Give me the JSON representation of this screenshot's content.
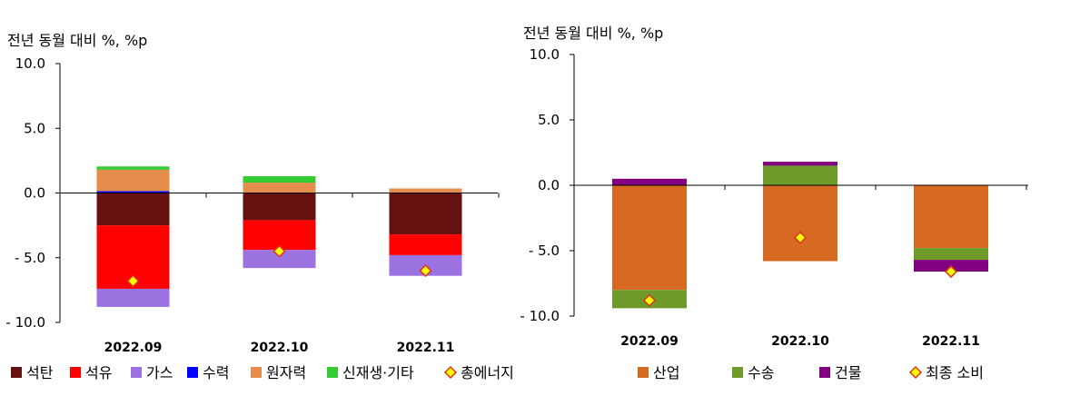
{
  "chart_data": [
    {
      "type": "bar",
      "stacked": true,
      "ylabel": "전년 동월 대비 %, %p",
      "ylim": [
        -10,
        10
      ],
      "yticks": [
        "10.0",
        "5.0",
        "0.0",
        "- 5.0",
        "- 10.0"
      ],
      "categories": [
        "2022.09",
        "2022.10",
        "2022.11"
      ],
      "series": [
        {
          "name": "석탄",
          "color": "#66100f",
          "values": [
            -2.5,
            -2.1,
            -3.2
          ]
        },
        {
          "name": "석유",
          "color": "#ff0000",
          "values": [
            -4.9,
            -2.3,
            -1.6
          ]
        },
        {
          "name": "가스",
          "color": "#9b72e0",
          "values": [
            -1.4,
            -1.4,
            -1.6
          ]
        },
        {
          "name": "수력",
          "color": "#0000ff",
          "values": [
            0.15,
            0.0,
            0.0
          ]
        },
        {
          "name": "원자력",
          "color": "#e58d4a",
          "values": [
            1.65,
            0.8,
            0.35
          ]
        },
        {
          "name": "신재생·기타",
          "color": "#33cc33",
          "values": [
            0.25,
            0.5,
            0.0
          ]
        }
      ],
      "total_marker": {
        "name": "총에너지",
        "values": [
          -6.8,
          -4.5,
          -6.0
        ],
        "fill": "#ffff00",
        "stroke": "#e03020"
      },
      "legend_position": "bottom"
    },
    {
      "type": "bar",
      "stacked": true,
      "ylabel": "전년 동월 대비 %, %p",
      "ylim": [
        -10,
        10
      ],
      "yticks": [
        "10.0",
        "5.0",
        "0.0",
        "- 5.0",
        "- 10.0"
      ],
      "categories": [
        "2022.09",
        "2022.10",
        "2022.11"
      ],
      "series": [
        {
          "name": "산업",
          "color": "#d66a22",
          "values": [
            -8.0,
            -5.8,
            -4.8
          ]
        },
        {
          "name": "수송",
          "color": "#6e9a2a",
          "values": [
            -1.4,
            1.5,
            -0.9
          ]
        },
        {
          "name": "건물",
          "color": "#800080",
          "values": [
            0.5,
            0.3,
            -0.9
          ]
        }
      ],
      "total_marker": {
        "name": "최종 소비",
        "values": [
          -8.8,
          -4.0,
          -6.6
        ],
        "fill": "#ffff00",
        "stroke": "#e03020"
      },
      "legend_position": "bottom"
    }
  ]
}
